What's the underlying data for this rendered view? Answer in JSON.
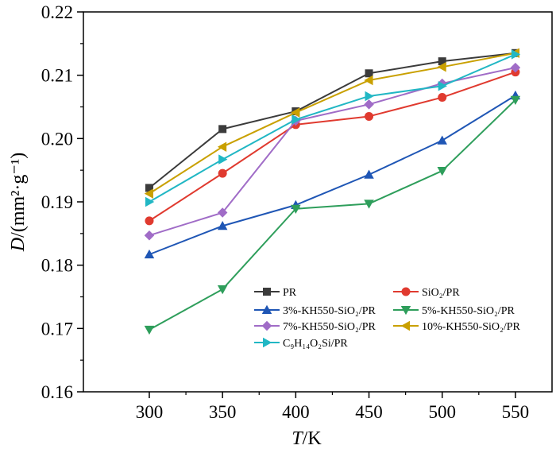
{
  "chart_data": {
    "type": "line",
    "x": [
      300,
      350,
      400,
      450,
      500,
      550
    ],
    "xlabel": "T/K",
    "xlabel_italic": "T",
    "xlabel_rest": "/K",
    "ylabel": "D/(mm²·g⁻¹)",
    "ylabel_italic": "D",
    "ylabel_rest": "/(mm²·g⁻¹)",
    "xlim": [
      255,
      575
    ],
    "ylim": [
      0.16,
      0.22
    ],
    "xticks": [
      "300",
      "350",
      "400",
      "450",
      "500",
      "550"
    ],
    "yticks": [
      "0.16",
      "0.17",
      "0.18",
      "0.19",
      "0.20",
      "0.21",
      "0.22"
    ],
    "grid": false,
    "legend_placement": "lower-right",
    "series": [
      {
        "name": "PR",
        "color": "#3b3b3b",
        "marker": "square",
        "values": [
          0.1922,
          0.2015,
          0.2043,
          0.2103,
          0.2122,
          0.2135
        ]
      },
      {
        "name": "SiO₂/PR",
        "color": "#e03a2f",
        "marker": "circle",
        "values": [
          0.187,
          0.1945,
          0.2022,
          0.2035,
          0.2065,
          0.2105
        ]
      },
      {
        "name": "3%-KH550-SiO₂/PR",
        "color": "#1f56b5",
        "marker": "triangle-up",
        "values": [
          0.1817,
          0.1862,
          0.1895,
          0.1943,
          0.1997,
          0.2068
        ]
      },
      {
        "name": "5%-KH550-SiO₂/PR",
        "color": "#2e9e5b",
        "marker": "triangle-down",
        "values": [
          0.1698,
          0.1762,
          0.1889,
          0.1897,
          0.1949,
          0.2061
        ]
      },
      {
        "name": "7%-KH550-SiO₂/PR",
        "color": "#a06cc7",
        "marker": "diamond",
        "values": [
          0.1847,
          0.1883,
          0.2028,
          0.2054,
          0.2087,
          0.2112
        ]
      },
      {
        "name": "10%-KH550-SiO₂/PR",
        "color": "#c9a000",
        "marker": "triangle-left",
        "values": [
          0.1913,
          0.1987,
          0.2041,
          0.2092,
          0.2113,
          0.2135
        ]
      },
      {
        "name": "C₉H₁₄O₂Si/PR",
        "color": "#21b7c4",
        "marker": "triangle-right",
        "values": [
          0.19,
          0.1967,
          0.203,
          0.2067,
          0.2083,
          0.2133
        ]
      }
    ]
  }
}
